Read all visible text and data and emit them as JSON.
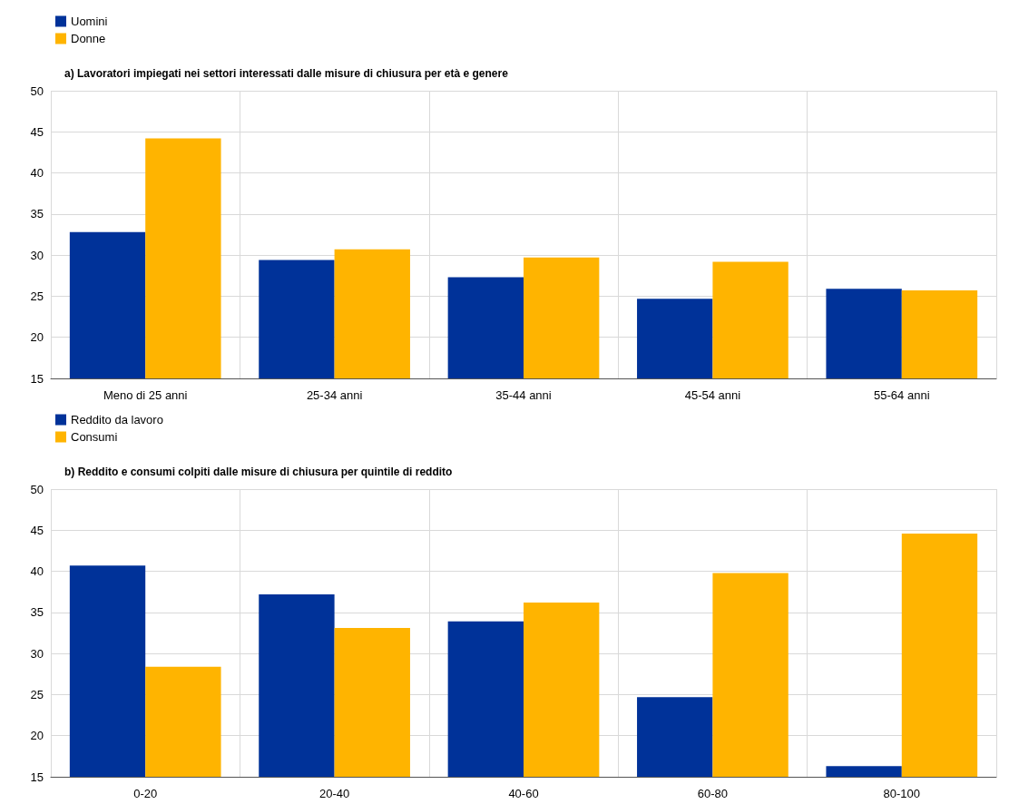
{
  "chart_data": [
    {
      "type": "bar",
      "title": "a) Lavoratori impiegati nei settori interessati dalle misure di chiusura per età e genere",
      "categories": [
        "Meno di 25 anni",
        "25-34 anni",
        "35-44 anni",
        "45-54 anni",
        "55-64 anni"
      ],
      "series": [
        {
          "name": "Uomini",
          "color": "#003299",
          "values": [
            32.8,
            29.4,
            27.3,
            24.7,
            25.9
          ]
        },
        {
          "name": "Donne",
          "color": "#ffb400",
          "values": [
            44.2,
            30.7,
            29.7,
            29.2,
            25.7
          ]
        }
      ],
      "ylim": [
        15,
        50
      ],
      "yticks": [
        15,
        20,
        25,
        30,
        35,
        40,
        45,
        50
      ],
      "grid": true,
      "legend": "top left"
    },
    {
      "type": "bar",
      "title": "b) Reddito e consumi colpiti dalle misure di chiusura per quintile di reddito",
      "categories": [
        "0-20",
        "20-40",
        "40-60",
        "60-80",
        "80-100"
      ],
      "series": [
        {
          "name": "Reddito da lavoro",
          "color": "#003299",
          "values": [
            40.7,
            37.2,
            33.9,
            24.7,
            16.3
          ]
        },
        {
          "name": "Consumi",
          "color": "#ffb400",
          "values": [
            28.4,
            33.1,
            36.2,
            39.8,
            44.6
          ]
        }
      ],
      "ylim": [
        15,
        50
      ],
      "yticks": [
        15,
        20,
        25,
        30,
        35,
        40,
        45,
        50
      ],
      "grid": true,
      "legend": "top left"
    }
  ]
}
